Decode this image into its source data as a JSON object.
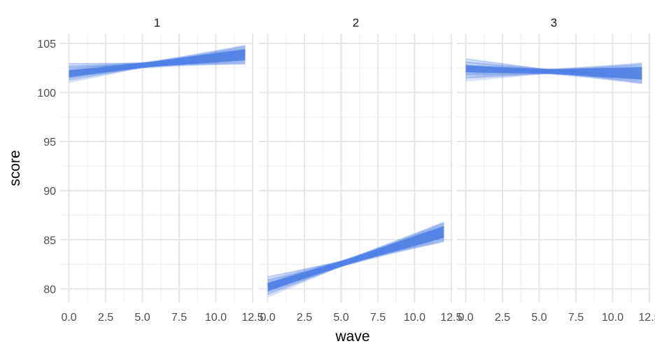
{
  "chart_data": {
    "type": "line",
    "xlabel": "wave",
    "ylabel": "score",
    "xlim": [
      -0.6,
      12.6
    ],
    "ylim": [
      78.6,
      106.0
    ],
    "x_ticks": [
      "0.0",
      "2.5",
      "5.0",
      "7.5",
      "10.0",
      "12.5"
    ],
    "y_ticks": [
      "80",
      "85",
      "90",
      "95",
      "100",
      "105"
    ],
    "x_tick_values": [
      0,
      2.5,
      5,
      7.5,
      10,
      12.5
    ],
    "y_tick_values": [
      80,
      85,
      90,
      95,
      100,
      105
    ],
    "grid": true,
    "line_color": "#4f7fe6",
    "facets": [
      {
        "label": "1",
        "x_range": [
          0,
          12
        ],
        "band": {
          "start_low": 101.3,
          "start_high": 102.5,
          "pivot_x": 5,
          "pivot_low": 102.55,
          "pivot_high": 103.0,
          "end_low": 102.9,
          "end_high": 104.8
        }
      },
      {
        "label": "2",
        "x_range": [
          0,
          12
        ],
        "band": {
          "start_low": 79.5,
          "start_high": 80.9,
          "pivot_x": 5,
          "pivot_low": 82.3,
          "pivot_high": 82.8,
          "end_low": 84.8,
          "end_high": 86.8
        }
      },
      {
        "label": "3",
        "x_range": [
          0,
          12
        ],
        "band": {
          "start_low": 101.8,
          "start_high": 103.0,
          "pivot_x": 5.5,
          "pivot_low": 101.95,
          "pivot_high": 102.35,
          "end_low": 100.9,
          "end_high": 103.0
        }
      }
    ]
  }
}
